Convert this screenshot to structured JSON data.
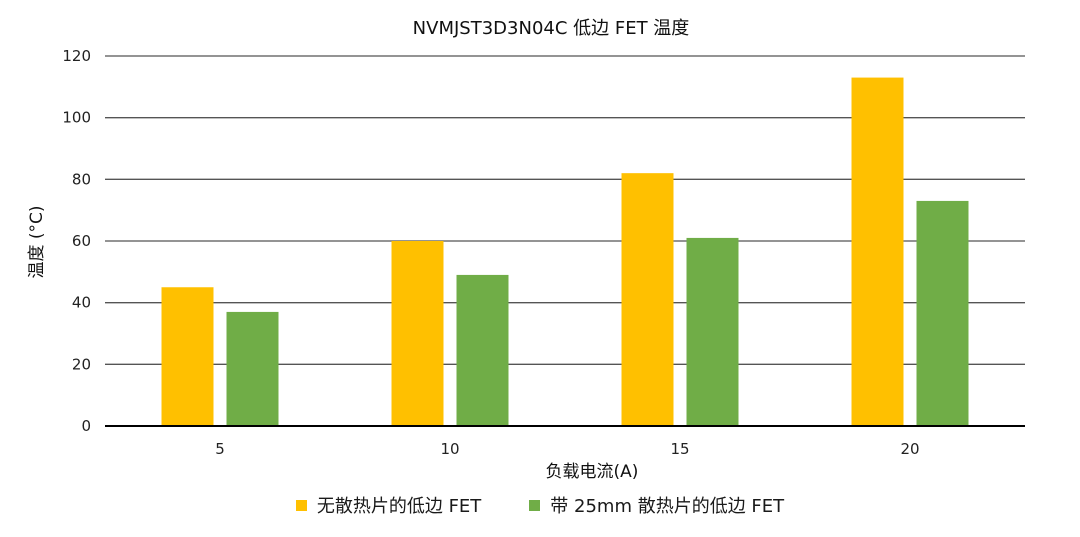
{
  "chart_data": {
    "type": "bar",
    "title": "NVMJST3D3N04C 低边 FET 温度",
    "xlabel": "负载电流(A)",
    "ylabel": "温度 (°C)",
    "categories": [
      "5",
      "10",
      "15",
      "20"
    ],
    "ylim": [
      0,
      120
    ],
    "yticks": [
      0,
      20,
      40,
      60,
      80,
      100,
      120
    ],
    "grid": true,
    "legend_position": "bottom",
    "series": [
      {
        "name": "无散热片的低边 FET",
        "color": "#FFC000",
        "values": [
          45,
          60,
          82,
          113
        ]
      },
      {
        "name": "带 25mm 散热片的低边 FET",
        "color": "#70AD47",
        "values": [
          37,
          49,
          61,
          73
        ]
      }
    ]
  }
}
